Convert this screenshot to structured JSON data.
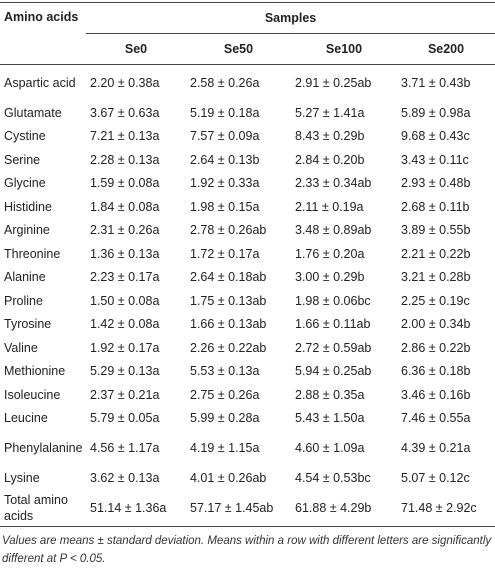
{
  "table": {
    "row_header": "Amino acids",
    "group_header": "Samples",
    "columns": [
      "Se0",
      "Se50",
      "Se100",
      "Se200"
    ],
    "rows": [
      [
        "Aspartic acid",
        "2.20 ± 0.38a",
        "2.58 ± 0.26a",
        "2.91 ± 0.25ab",
        "3.71 ± 0.43b"
      ],
      [
        "Glutamate",
        "3.67 ± 0.63a",
        "5.19 ± 0.18a",
        "5.27 ± 1.41a",
        "5.89 ± 0.98a"
      ],
      [
        "Cystine",
        "7.21 ± 0.13a",
        "7.57 ± 0.09a",
        "8.43 ± 0.29b",
        "9.68 ± 0.43c"
      ],
      [
        "Serine",
        "2.28 ± 0.13a",
        "2.64 ± 0.13b",
        "2.84 ± 0.20b",
        "3.43 ± 0.11c"
      ],
      [
        "Glycine",
        "1.59 ± 0.08a",
        "1.92 ± 0.33a",
        "2.33 ± 0.34ab",
        "2.93 ± 0.48b"
      ],
      [
        "Histidine",
        "1.84 ± 0.08a",
        "1.98 ± 0.15a",
        "2.11 ± 0.19a",
        "2.68 ± 0.11b"
      ],
      [
        "Arginine",
        "2.31 ± 0.26a",
        "2.78 ± 0.26ab",
        "3.48 ± 0.89ab",
        "3.89 ± 0.55b"
      ],
      [
        "Threonine",
        "1.36 ± 0.13a",
        "1.72 ± 0.17a",
        "1.76 ± 0.20a",
        "2.21 ± 0.22b"
      ],
      [
        "Alanine",
        "2.23 ± 0.17a",
        "2.64 ± 0.18ab",
        "3.00 ± 0.29b",
        "3.21 ± 0.28b"
      ],
      [
        "Proline",
        "1.50 ± 0.08a",
        "1.75 ± 0.13ab",
        "1.98 ± 0.06bc",
        "2.25 ± 0.19c"
      ],
      [
        "Tyrosine",
        "1.42 ± 0.08a",
        "1.66 ± 0.13ab",
        "1.66 ± 0.11ab",
        "2.00 ± 0.34b"
      ],
      [
        "Valine",
        "1.92 ± 0.17a",
        "2.26 ± 0.22ab",
        "2.72 ± 0.59ab",
        "2.86 ± 0.22b"
      ],
      [
        "Methionine",
        "5.29 ± 0.13a",
        "5.53 ± 0.13a",
        "5.94 ± 0.25ab",
        "6.36 ± 0.18b"
      ],
      [
        "Isoleucine",
        "2.37 ± 0.21a",
        "2.75 ± 0.26a",
        "2.88 ± 0.35a",
        "3.46 ± 0.16b"
      ],
      [
        "Leucine",
        "5.79 ± 0.05a",
        "5.99 ± 0.28a",
        "5.43 ± 1.50a",
        "7.46 ± 0.55a"
      ],
      [
        "Phenylalanine",
        "4.56 ± 1.17a",
        "4.19 ± 1.15a",
        "4.60 ± 1.09a",
        "4.39 ± 0.21a"
      ],
      [
        "Lysine",
        "3.62 ± 0.13a",
        "4.01 ± 0.26ab",
        "4.54 ± 0.53bc",
        "5.07 ± 0.12c"
      ],
      [
        "Total amino acids",
        "51.14 ± 1.36a",
        "57.17 ± 1.45ab",
        "61.88 ± 4.29b",
        "71.48 ± 2.92c"
      ]
    ],
    "footnote": "Values are means ± standard deviation. Means within a row with different letters are significantly different at P < 0.05."
  }
}
